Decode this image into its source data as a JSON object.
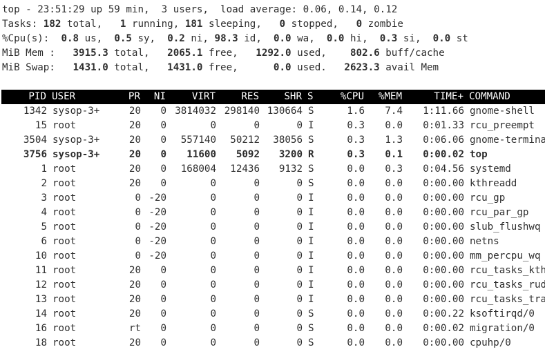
{
  "summary": {
    "uptime_line": "top - 23:51:29 up 59 min,  3 users,  load average: 0.06, 0.14, 0.12",
    "tasks": {
      "label": "Tasks:",
      "total": "182",
      "total_label": "total,",
      "running": "1",
      "running_label": "running,",
      "sleeping": "181",
      "sleeping_label": "sleeping,",
      "stopped": "0",
      "stopped_label": "stopped,",
      "zombie": "0",
      "zombie_label": "zombie"
    },
    "cpu": {
      "label": "%Cpu(s):",
      "us": "0.8",
      "sy": "0.5",
      "ni": "0.2",
      "id": "98.3",
      "wa": "0.0",
      "hi": "0.0",
      "si": "0.3",
      "st": "0.0"
    },
    "mem": {
      "label": "MiB Mem :",
      "total": "3915.3",
      "free": "2065.1",
      "used": "1292.0",
      "buff_cache": "802.6"
    },
    "swap": {
      "label": "MiB Swap:",
      "total": "1431.0",
      "free": "1431.0",
      "used": "0.0",
      "avail_mem": "2623.3"
    }
  },
  "table": {
    "headers": {
      "pid": "PID",
      "user": "USER",
      "pr": "PR",
      "ni": "NI",
      "virt": "VIRT",
      "res": "RES",
      "shr": "SHR",
      "s": "S",
      "cpu": "%CPU",
      "mem": "%MEM",
      "time": "TIME+",
      "command": "COMMAND"
    },
    "rows": [
      {
        "pid": "1342",
        "user": "sysop-3+",
        "pr": "20",
        "ni": "0",
        "virt": "3814032",
        "res": "298140",
        "shr": "130664",
        "s": "S",
        "cpu": "1.6",
        "mem": "7.4",
        "time": "1:11.66",
        "command": "gnome-shell",
        "bold": false
      },
      {
        "pid": "15",
        "user": "root",
        "pr": "20",
        "ni": "0",
        "virt": "0",
        "res": "0",
        "shr": "0",
        "s": "I",
        "cpu": "0.3",
        "mem": "0.0",
        "time": "0:01.33",
        "command": "rcu_preempt",
        "bold": false
      },
      {
        "pid": "3504",
        "user": "sysop-3+",
        "pr": "20",
        "ni": "0",
        "virt": "557140",
        "res": "50212",
        "shr": "38056",
        "s": "S",
        "cpu": "0.3",
        "mem": "1.3",
        "time": "0:06.06",
        "command": "gnome-terminal-",
        "bold": false
      },
      {
        "pid": "3756",
        "user": "sysop-3+",
        "pr": "20",
        "ni": "0",
        "virt": "11600",
        "res": "5092",
        "shr": "3200",
        "s": "R",
        "cpu": "0.3",
        "mem": "0.1",
        "time": "0:00.02",
        "command": "top",
        "bold": true
      },
      {
        "pid": "1",
        "user": "root",
        "pr": "20",
        "ni": "0",
        "virt": "168004",
        "res": "12436",
        "shr": "9132",
        "s": "S",
        "cpu": "0.0",
        "mem": "0.3",
        "time": "0:04.56",
        "command": "systemd",
        "bold": false
      },
      {
        "pid": "2",
        "user": "root",
        "pr": "20",
        "ni": "0",
        "virt": "0",
        "res": "0",
        "shr": "0",
        "s": "S",
        "cpu": "0.0",
        "mem": "0.0",
        "time": "0:00.00",
        "command": "kthreadd",
        "bold": false
      },
      {
        "pid": "3",
        "user": "root",
        "pr": "0",
        "ni": "-20",
        "virt": "0",
        "res": "0",
        "shr": "0",
        "s": "I",
        "cpu": "0.0",
        "mem": "0.0",
        "time": "0:00.00",
        "command": "rcu_gp",
        "bold": false
      },
      {
        "pid": "4",
        "user": "root",
        "pr": "0",
        "ni": "-20",
        "virt": "0",
        "res": "0",
        "shr": "0",
        "s": "I",
        "cpu": "0.0",
        "mem": "0.0",
        "time": "0:00.00",
        "command": "rcu_par_gp",
        "bold": false
      },
      {
        "pid": "5",
        "user": "root",
        "pr": "0",
        "ni": "-20",
        "virt": "0",
        "res": "0",
        "shr": "0",
        "s": "I",
        "cpu": "0.0",
        "mem": "0.0",
        "time": "0:00.00",
        "command": "slub_flushwq",
        "bold": false
      },
      {
        "pid": "6",
        "user": "root",
        "pr": "0",
        "ni": "-20",
        "virt": "0",
        "res": "0",
        "shr": "0",
        "s": "I",
        "cpu": "0.0",
        "mem": "0.0",
        "time": "0:00.00",
        "command": "netns",
        "bold": false
      },
      {
        "pid": "10",
        "user": "root",
        "pr": "0",
        "ni": "-20",
        "virt": "0",
        "res": "0",
        "shr": "0",
        "s": "I",
        "cpu": "0.0",
        "mem": "0.0",
        "time": "0:00.00",
        "command": "mm_percpu_wq",
        "bold": false
      },
      {
        "pid": "11",
        "user": "root",
        "pr": "20",
        "ni": "0",
        "virt": "0",
        "res": "0",
        "shr": "0",
        "s": "I",
        "cpu": "0.0",
        "mem": "0.0",
        "time": "0:00.00",
        "command": "rcu_tasks_kthr+",
        "bold": false
      },
      {
        "pid": "12",
        "user": "root",
        "pr": "20",
        "ni": "0",
        "virt": "0",
        "res": "0",
        "shr": "0",
        "s": "I",
        "cpu": "0.0",
        "mem": "0.0",
        "time": "0:00.00",
        "command": "rcu_tasks_rude+",
        "bold": false
      },
      {
        "pid": "13",
        "user": "root",
        "pr": "20",
        "ni": "0",
        "virt": "0",
        "res": "0",
        "shr": "0",
        "s": "I",
        "cpu": "0.0",
        "mem": "0.0",
        "time": "0:00.00",
        "command": "rcu_tasks_trac+",
        "bold": false
      },
      {
        "pid": "14",
        "user": "root",
        "pr": "20",
        "ni": "0",
        "virt": "0",
        "res": "0",
        "shr": "0",
        "s": "S",
        "cpu": "0.0",
        "mem": "0.0",
        "time": "0:00.22",
        "command": "ksoftirqd/0",
        "bold": false
      },
      {
        "pid": "16",
        "user": "root",
        "pr": "rt",
        "ni": "0",
        "virt": "0",
        "res": "0",
        "shr": "0",
        "s": "S",
        "cpu": "0.0",
        "mem": "0.0",
        "time": "0:00.02",
        "command": "migration/0",
        "bold": false
      },
      {
        "pid": "18",
        "user": "root",
        "pr": "20",
        "ni": "0",
        "virt": "0",
        "res": "0",
        "shr": "0",
        "s": "S",
        "cpu": "0.0",
        "mem": "0.0",
        "time": "0:00.00",
        "command": "cpuhp/0",
        "bold": false
      }
    ]
  },
  "colors": {
    "background": "#ffffff",
    "text": "#2e2e2e",
    "header_bg": "#000000",
    "header_text": "#ffffff"
  }
}
